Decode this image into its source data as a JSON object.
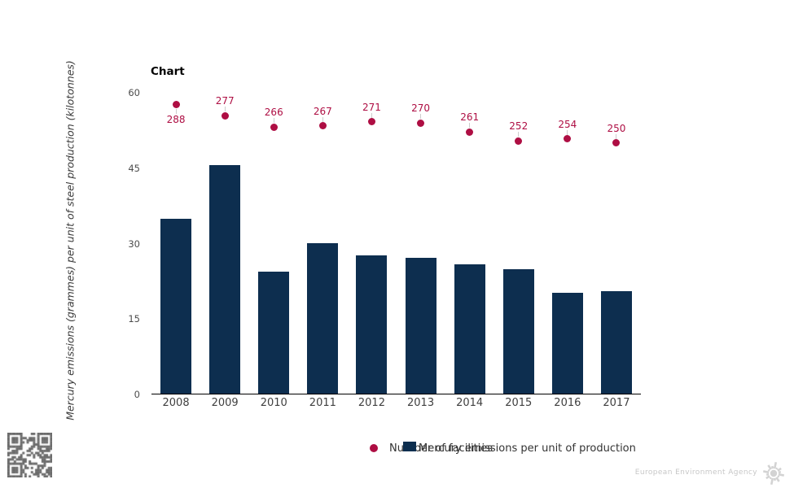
{
  "title": "Chart",
  "chart_data": {
    "type": "bar",
    "title": "Chart",
    "categories": [
      "2008",
      "2009",
      "2010",
      "2011",
      "2012",
      "2013",
      "2014",
      "2015",
      "2016",
      "2017"
    ],
    "series": [
      {
        "name": "Number of facilities",
        "type": "scatter",
        "axis": "secondary",
        "color": "#ae0e43",
        "values": [
          288,
          277,
          266,
          267,
          271,
          270,
          261,
          252,
          254,
          250
        ],
        "data_labels_visible": true
      },
      {
        "name": "Mercury emissions per unit of production",
        "type": "bar",
        "axis": "primary",
        "color": "#0d2e4f",
        "values": [
          35.0,
          45.6,
          24.4,
          30.1,
          27.6,
          27.1,
          25.9,
          24.9,
          20.2,
          20.5
        ]
      }
    ],
    "xlabel": "",
    "ylabel": "Mercury emissions (grammes) per unit of steel production (kilotonnes)",
    "ylim": [
      0,
      60
    ],
    "yticks": [
      0,
      15,
      30,
      45,
      60
    ],
    "y2lim": [
      0,
      300
    ],
    "grid": false,
    "legend_position": "bottom-center"
  },
  "legend": {
    "items": [
      {
        "label": "Number of facilities",
        "marker": "dot",
        "color": "#ae0e43"
      },
      {
        "label": "Mercury emissions per unit of production",
        "marker": "square",
        "color": "#0d2e4f"
      }
    ]
  },
  "footer": {
    "agency": "European Environment Agency"
  },
  "colors": {
    "bar": "#0d2e4f",
    "dot": "#ae0e43",
    "axis_line": "#000000",
    "tick_label": "#4d4d4d",
    "leader_line": "#cccccc",
    "legend_text": "#333333",
    "qr": "#6a6a6a",
    "eea_gray": "#c7c7c7",
    "logo_gray": "#d3d3d3"
  }
}
